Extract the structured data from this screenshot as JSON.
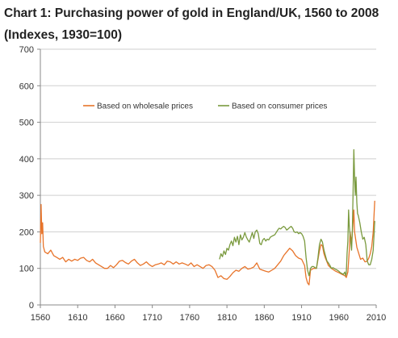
{
  "chart_data": {
    "type": "line",
    "title": "Chart 1: Purchasing power of gold in England/UK, 1560 to 2008 (Indexes, 1930=100)",
    "xlim": [
      1560,
      2010
    ],
    "ylim": [
      0,
      700
    ],
    "x_ticks": [
      1560,
      1610,
      1660,
      1710,
      1760,
      1810,
      1860,
      1910,
      1960,
      2010
    ],
    "y_ticks": [
      0,
      100,
      200,
      300,
      400,
      500,
      600,
      700
    ],
    "grid": "horizontal",
    "legend_position": "top-center",
    "series": [
      {
        "name": "Based on wholesale prices",
        "color": "#e8742a",
        "points": [
          [
            1560,
            170
          ],
          [
            1561,
            275
          ],
          [
            1562,
            195
          ],
          [
            1563,
            225
          ],
          [
            1564,
            160
          ],
          [
            1566,
            145
          ],
          [
            1570,
            140
          ],
          [
            1574,
            150
          ],
          [
            1578,
            135
          ],
          [
            1582,
            130
          ],
          [
            1586,
            125
          ],
          [
            1590,
            130
          ],
          [
            1594,
            118
          ],
          [
            1598,
            125
          ],
          [
            1602,
            120
          ],
          [
            1606,
            125
          ],
          [
            1610,
            122
          ],
          [
            1614,
            128
          ],
          [
            1618,
            130
          ],
          [
            1622,
            122
          ],
          [
            1626,
            118
          ],
          [
            1630,
            125
          ],
          [
            1634,
            115
          ],
          [
            1638,
            110
          ],
          [
            1642,
            105
          ],
          [
            1646,
            100
          ],
          [
            1650,
            100
          ],
          [
            1654,
            108
          ],
          [
            1658,
            102
          ],
          [
            1662,
            110
          ],
          [
            1666,
            120
          ],
          [
            1670,
            122
          ],
          [
            1674,
            116
          ],
          [
            1678,
            112
          ],
          [
            1682,
            120
          ],
          [
            1686,
            125
          ],
          [
            1690,
            115
          ],
          [
            1694,
            108
          ],
          [
            1698,
            112
          ],
          [
            1702,
            118
          ],
          [
            1706,
            110
          ],
          [
            1710,
            105
          ],
          [
            1714,
            110
          ],
          [
            1718,
            112
          ],
          [
            1722,
            115
          ],
          [
            1726,
            110
          ],
          [
            1730,
            120
          ],
          [
            1734,
            118
          ],
          [
            1738,
            112
          ],
          [
            1742,
            118
          ],
          [
            1746,
            112
          ],
          [
            1750,
            115
          ],
          [
            1754,
            112
          ],
          [
            1758,
            108
          ],
          [
            1762,
            115
          ],
          [
            1766,
            105
          ],
          [
            1770,
            110
          ],
          [
            1774,
            105
          ],
          [
            1778,
            100
          ],
          [
            1782,
            108
          ],
          [
            1786,
            110
          ],
          [
            1790,
            105
          ],
          [
            1794,
            95
          ],
          [
            1798,
            75
          ],
          [
            1802,
            80
          ],
          [
            1806,
            72
          ],
          [
            1810,
            70
          ],
          [
            1814,
            78
          ],
          [
            1818,
            88
          ],
          [
            1822,
            95
          ],
          [
            1826,
            92
          ],
          [
            1830,
            100
          ],
          [
            1834,
            105
          ],
          [
            1838,
            98
          ],
          [
            1842,
            100
          ],
          [
            1846,
            104
          ],
          [
            1850,
            115
          ],
          [
            1854,
            98
          ],
          [
            1858,
            95
          ],
          [
            1862,
            92
          ],
          [
            1866,
            90
          ],
          [
            1870,
            95
          ],
          [
            1874,
            100
          ],
          [
            1878,
            110
          ],
          [
            1882,
            120
          ],
          [
            1886,
            135
          ],
          [
            1890,
            145
          ],
          [
            1894,
            155
          ],
          [
            1898,
            148
          ],
          [
            1902,
            135
          ],
          [
            1906,
            128
          ],
          [
            1910,
            125
          ],
          [
            1914,
            108
          ],
          [
            1916,
            75
          ],
          [
            1918,
            60
          ],
          [
            1920,
            55
          ],
          [
            1922,
            95
          ],
          [
            1926,
            100
          ],
          [
            1930,
            100
          ],
          [
            1934,
            148
          ],
          [
            1936,
            165
          ],
          [
            1938,
            162
          ],
          [
            1940,
            140
          ],
          [
            1942,
            128
          ],
          [
            1944,
            118
          ],
          [
            1946,
            108
          ],
          [
            1950,
            100
          ],
          [
            1955,
            93
          ],
          [
            1960,
            88
          ],
          [
            1964,
            84
          ],
          [
            1968,
            80
          ],
          [
            1970,
            75
          ],
          [
            1972,
            90
          ],
          [
            1974,
            150
          ],
          [
            1975,
            200
          ],
          [
            1977,
            170
          ],
          [
            1979,
            225
          ],
          [
            1980,
            260
          ],
          [
            1981,
            200
          ],
          [
            1984,
            158
          ],
          [
            1986,
            145
          ],
          [
            1989,
            125
          ],
          [
            1992,
            128
          ],
          [
            1995,
            118
          ],
          [
            1998,
            120
          ],
          [
            2000,
            128
          ],
          [
            2002,
            140
          ],
          [
            2004,
            160
          ],
          [
            2006,
            200
          ],
          [
            2008,
            285
          ]
        ]
      },
      {
        "name": "Based on consumer prices",
        "color": "#7a9a3e",
        "points": [
          [
            1800,
            125
          ],
          [
            1802,
            140
          ],
          [
            1804,
            132
          ],
          [
            1806,
            148
          ],
          [
            1808,
            138
          ],
          [
            1810,
            155
          ],
          [
            1812,
            150
          ],
          [
            1814,
            165
          ],
          [
            1816,
            175
          ],
          [
            1818,
            162
          ],
          [
            1820,
            185
          ],
          [
            1822,
            172
          ],
          [
            1824,
            188
          ],
          [
            1826,
            165
          ],
          [
            1828,
            192
          ],
          [
            1830,
            178
          ],
          [
            1832,
            185
          ],
          [
            1834,
            198
          ],
          [
            1836,
            186
          ],
          [
            1838,
            178
          ],
          [
            1840,
            172
          ],
          [
            1842,
            185
          ],
          [
            1844,
            198
          ],
          [
            1846,
            182
          ],
          [
            1848,
            200
          ],
          [
            1850,
            205
          ],
          [
            1852,
            195
          ],
          [
            1854,
            168
          ],
          [
            1856,
            165
          ],
          [
            1858,
            178
          ],
          [
            1860,
            182
          ],
          [
            1862,
            175
          ],
          [
            1864,
            180
          ],
          [
            1866,
            178
          ],
          [
            1868,
            185
          ],
          [
            1870,
            188
          ],
          [
            1872,
            190
          ],
          [
            1874,
            192
          ],
          [
            1876,
            198
          ],
          [
            1878,
            205
          ],
          [
            1880,
            210
          ],
          [
            1882,
            208
          ],
          [
            1884,
            212
          ],
          [
            1886,
            215
          ],
          [
            1888,
            212
          ],
          [
            1890,
            205
          ],
          [
            1892,
            208
          ],
          [
            1894,
            212
          ],
          [
            1896,
            215
          ],
          [
            1898,
            210
          ],
          [
            1900,
            200
          ],
          [
            1902,
            198
          ],
          [
            1904,
            200
          ],
          [
            1906,
            195
          ],
          [
            1908,
            198
          ],
          [
            1910,
            195
          ],
          [
            1912,
            188
          ],
          [
            1914,
            175
          ],
          [
            1916,
            130
          ],
          [
            1918,
            95
          ],
          [
            1920,
            80
          ],
          [
            1922,
            100
          ],
          [
            1924,
            105
          ],
          [
            1926,
            105
          ],
          [
            1928,
            102
          ],
          [
            1930,
            100
          ],
          [
            1932,
            130
          ],
          [
            1934,
            165
          ],
          [
            1936,
            180
          ],
          [
            1938,
            172
          ],
          [
            1940,
            150
          ],
          [
            1942,
            135
          ],
          [
            1944,
            120
          ],
          [
            1946,
            115
          ],
          [
            1948,
            108
          ],
          [
            1950,
            100
          ],
          [
            1952,
            102
          ],
          [
            1955,
            98
          ],
          [
            1958,
            95
          ],
          [
            1960,
            92
          ],
          [
            1962,
            88
          ],
          [
            1964,
            86
          ],
          [
            1966,
            84
          ],
          [
            1968,
            90
          ],
          [
            1969,
            80
          ],
          [
            1970,
            88
          ],
          [
            1971,
            140
          ],
          [
            1972,
            175
          ],
          [
            1973,
            260
          ],
          [
            1974,
            215
          ],
          [
            1976,
            170
          ],
          [
            1977,
            150
          ],
          [
            1978,
            200
          ],
          [
            1979,
            300
          ],
          [
            1980,
            425
          ],
          [
            1981,
            350
          ],
          [
            1982,
            300
          ],
          [
            1983,
            350
          ],
          [
            1984,
            280
          ],
          [
            1985,
            250
          ],
          [
            1986,
            245
          ],
          [
            1988,
            225
          ],
          [
            1990,
            200
          ],
          [
            1992,
            180
          ],
          [
            1994,
            185
          ],
          [
            1996,
            165
          ],
          [
            1998,
            120
          ],
          [
            2000,
            110
          ],
          [
            2002,
            110
          ],
          [
            2004,
            125
          ],
          [
            2006,
            150
          ],
          [
            2008,
            230
          ]
        ]
      }
    ]
  }
}
